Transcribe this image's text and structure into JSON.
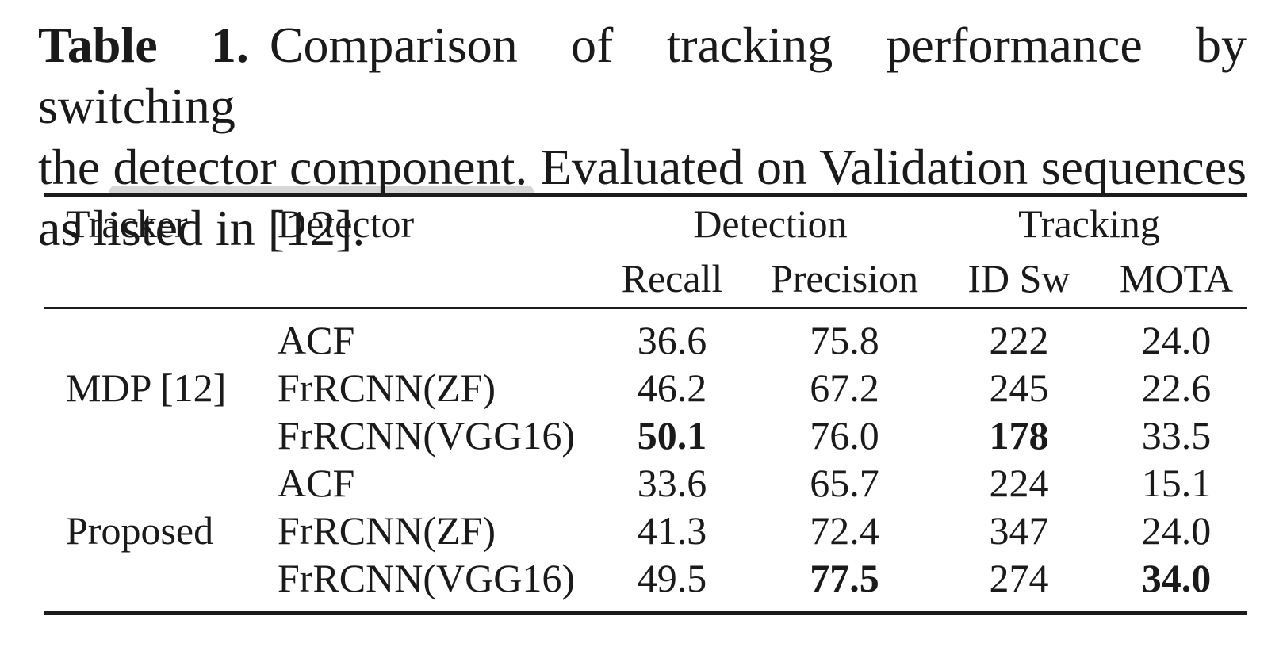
{
  "caption": {
    "label": "Table 1.",
    "line1_rest": "Comparison of tracking performance by switching",
    "line2_pre": "the ",
    "line2_highlight": "detector component",
    "line2_post": ". Evaluated on Validation sequences",
    "line3": "as listed in [12].",
    "reference": "[12]"
  },
  "table": {
    "header": {
      "tracker": "Tracker",
      "detector": "Detector",
      "detection_group": "Detection",
      "tracking_group": "Tracking",
      "recall": "Recall",
      "precision": "Precision",
      "id_sw": "ID Sw",
      "mota": "MOTA"
    },
    "rows": [
      {
        "tracker": "",
        "detector": "ACF",
        "recall": "36.6",
        "precision": "75.8",
        "id_sw": "222",
        "mota": "24.0",
        "bold": []
      },
      {
        "tracker": "MDP [12]",
        "detector": "FrRCNN(ZF)",
        "recall": "46.2",
        "precision": "67.2",
        "id_sw": "245",
        "mota": "22.6",
        "bold": []
      },
      {
        "tracker": "",
        "detector": "FrRCNN(VGG16)",
        "recall": "50.1",
        "precision": "76.0",
        "id_sw": "178",
        "mota": "33.5",
        "bold": [
          "recall",
          "id_sw"
        ]
      },
      {
        "tracker": "",
        "detector": "ACF",
        "recall": "33.6",
        "precision": "65.7",
        "id_sw": "224",
        "mota": "15.1",
        "bold": []
      },
      {
        "tracker": "Proposed",
        "detector": "FrRCNN(ZF)",
        "recall": "41.3",
        "precision": "72.4",
        "id_sw": "347",
        "mota": "24.0",
        "bold": []
      },
      {
        "tracker": "",
        "detector": "FrRCNN(VGG16)",
        "recall": "49.5",
        "precision": "77.5",
        "id_sw": "274",
        "mota": "34.0",
        "bold": [
          "precision",
          "mota"
        ]
      }
    ]
  },
  "colors": {
    "text": "#1a1a1a",
    "rule": "#1c1c1c",
    "highlight": "#d6d6d6"
  }
}
